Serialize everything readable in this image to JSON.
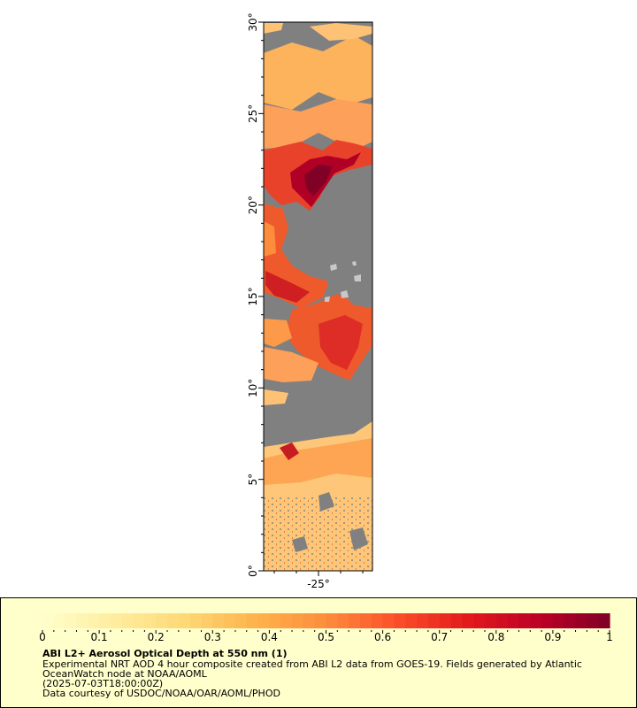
{
  "map": {
    "lat_ticks": [
      "0°",
      "5°",
      "10°",
      "15°",
      "20°",
      "25°",
      "30°"
    ],
    "lon_ticks": [
      "-25°"
    ],
    "lat_range": [
      0,
      30
    ],
    "colors": {
      "land_gray": "#808080",
      "axis": "#000000",
      "legend_bg": "#ffffcc"
    }
  },
  "legend": {
    "title": "ABI L2+ Aerosol Optical Depth at 550 nm (1)",
    "line1": "Experimental NRT AOD 4 hour composite created from ABI L2 data from GOES-19. Fields generated by Atlantic",
    "line2": "OceanWatch node at NOAA/AOML",
    "line3": "(2025-07-03T18:00:00Z)",
    "line4": "Data courtesy of USDOC/NOAA/OAR/AOML/PHOD",
    "colorbar_ticks": [
      "0",
      "0.1",
      "0.2",
      "0.3",
      "0.4",
      "0.5",
      "0.6",
      "0.7",
      "0.8",
      "0.9",
      "1"
    ],
    "colorbar_range": [
      0,
      1
    ],
    "colormap": [
      "#ffffcc",
      "#ffeda0",
      "#fed976",
      "#feb24c",
      "#fd8d3c",
      "#fc4e2a",
      "#e31a1c",
      "#bd0026",
      "#800026"
    ]
  }
}
